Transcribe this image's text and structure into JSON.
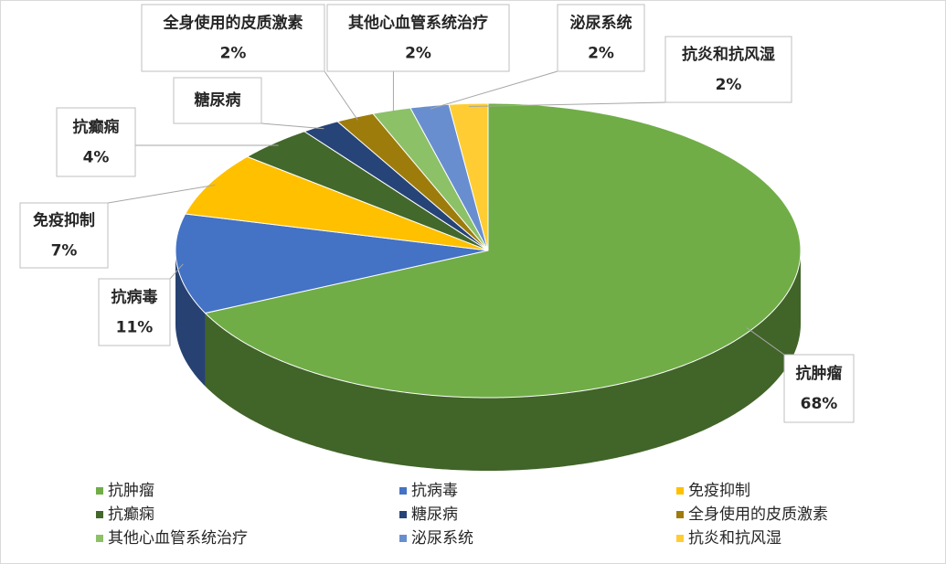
{
  "chart_data": {
    "type": "pie",
    "categories": [
      "抗肿瘤",
      "抗病毒",
      "免疫抑制",
      "抗癫痫",
      "糖尿病",
      "全身使用的皮质激素",
      "其他心血管系统治疗",
      "泌尿系统",
      "抗炎和抗风湿"
    ],
    "values": [
      68,
      11,
      7,
      4,
      2,
      2,
      2,
      2,
      2
    ],
    "value_labels": [
      "68%",
      "11%",
      "7%",
      "4%",
      null,
      "2%",
      "2%",
      "2%",
      "2%"
    ],
    "colors": [
      "#70ad47",
      "#4472c4",
      "#ffc000",
      "#43682b",
      "#264478",
      "#9e7c0c",
      "#8cc168",
      "#698ed0",
      "#ffcd33"
    ]
  }
}
